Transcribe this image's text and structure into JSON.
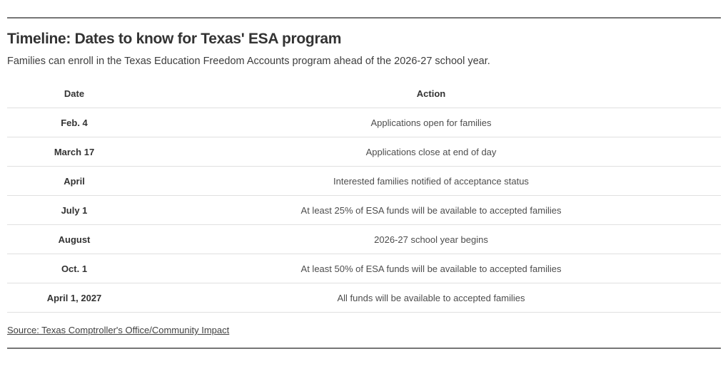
{
  "chart_data": {
    "type": "table",
    "title": "Timeline: Dates to know for Texas' ESA program",
    "subtitle": "Families can enroll in the Texas Education Freedom Accounts program ahead of the 2026-27 school year.",
    "columns": [
      "Date",
      "Action"
    ],
    "rows": [
      {
        "date": "Feb. 4",
        "action": "Applications open for families"
      },
      {
        "date": "March 17",
        "action": "Applications close at end of day"
      },
      {
        "date": "April",
        "action": "Interested families notified of acceptance status"
      },
      {
        "date": "July 1",
        "action": "At least 25% of ESA funds will be available to accepted families"
      },
      {
        "date": "August",
        "action": "2026-27 school year begins"
      },
      {
        "date": "Oct. 1",
        "action": "At least 50% of ESA funds will be available to accepted families"
      },
      {
        "date": "April 1, 2027",
        "action": "All funds will be available to accepted families"
      }
    ],
    "source": "Source: Texas Comptroller's Office/Community Impact",
    "layout": {
      "legend": "none",
      "grid": "horizontal-dividers",
      "column_alignment": "center"
    }
  },
  "colors": {
    "title_text": "#333333",
    "body_text": "#4d4d4d",
    "rule": "#767676",
    "row_divider": "#e0e0e0",
    "background": "#ffffff"
  }
}
